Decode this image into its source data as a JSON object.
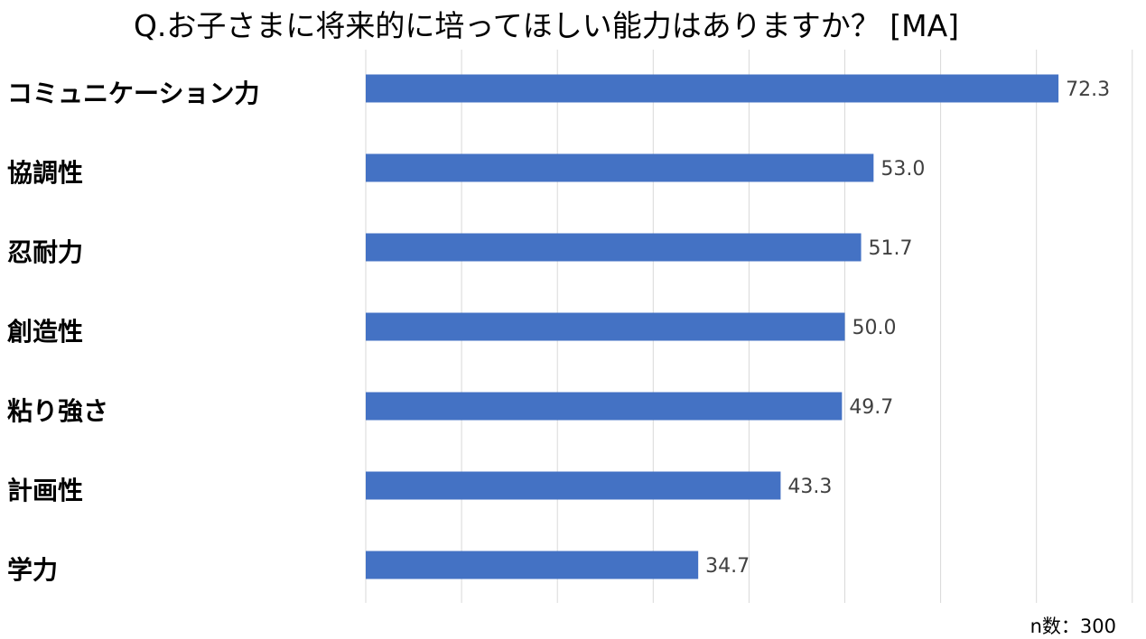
{
  "chart_data": {
    "type": "bar",
    "orientation": "horizontal",
    "title": "Q.お子さまに将来的に培ってほしい能力はありますか？ [MA]",
    "categories": [
      "コミュニケーション力",
      "協調性",
      "忍耐力",
      "創造性",
      "粘り強さ",
      "計画性",
      "学力"
    ],
    "values": [
      72.3,
      53.0,
      51.7,
      50.0,
      49.7,
      43.3,
      34.7
    ],
    "value_labels": [
      "72.3",
      "53.0",
      "51.7",
      "50.0",
      "49.7",
      "43.3",
      "34.7"
    ],
    "xlim": [
      0,
      80
    ],
    "grid": true,
    "bar_color": "#4472C4",
    "gridline_color": "#D9D9D9",
    "note": "n数：300"
  }
}
